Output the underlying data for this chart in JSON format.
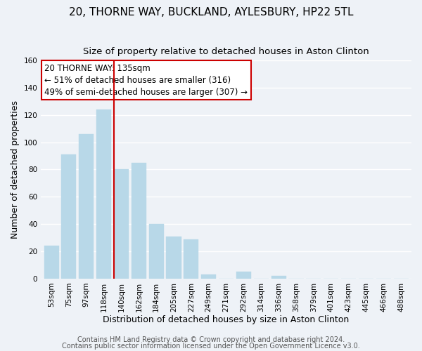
{
  "title": "20, THORNE WAY, BUCKLAND, AYLESBURY, HP22 5TL",
  "subtitle": "Size of property relative to detached houses in Aston Clinton",
  "xlabel": "Distribution of detached houses by size in Aston Clinton",
  "ylabel": "Number of detached properties",
  "bar_labels": [
    "53sqm",
    "75sqm",
    "97sqm",
    "118sqm",
    "140sqm",
    "162sqm",
    "184sqm",
    "205sqm",
    "227sqm",
    "249sqm",
    "271sqm",
    "292sqm",
    "314sqm",
    "336sqm",
    "358sqm",
    "379sqm",
    "401sqm",
    "423sqm",
    "445sqm",
    "466sqm",
    "488sqm"
  ],
  "bar_values": [
    24,
    91,
    106,
    124,
    80,
    85,
    40,
    31,
    29,
    3,
    0,
    5,
    0,
    2,
    0,
    0,
    0,
    0,
    0,
    0,
    0
  ],
  "bar_color": "#b8d8e8",
  "vline_color": "#cc0000",
  "vline_index": 4,
  "annotation_line1": "20 THORNE WAY: 135sqm",
  "annotation_line2": "← 51% of detached houses are smaller (316)",
  "annotation_line3": "49% of semi-detached houses are larger (307) →",
  "annotation_box_edge_color": "#cc0000",
  "annotation_box_facecolor": "white",
  "ylim": [
    0,
    160
  ],
  "yticks": [
    0,
    20,
    40,
    60,
    80,
    100,
    120,
    140,
    160
  ],
  "footer_line1": "Contains HM Land Registry data © Crown copyright and database right 2024.",
  "footer_line2": "Contains public sector information licensed under the Open Government Licence v3.0.",
  "background_color": "#eef2f7",
  "grid_color": "white",
  "title_fontsize": 11,
  "subtitle_fontsize": 9.5,
  "axis_label_fontsize": 9,
  "tick_fontsize": 7.5,
  "annotation_fontsize": 8.5,
  "footer_fontsize": 7
}
